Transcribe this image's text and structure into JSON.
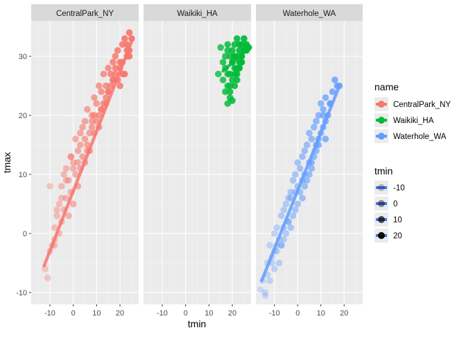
{
  "chart_data": {
    "type": "scatter",
    "facet_by": "name",
    "panels": [
      "CentralPark_NY",
      "Waikiki_HA",
      "Waterhole_WA"
    ],
    "xlabel": "tmin",
    "ylabel": "tmax",
    "xlim": [
      -18,
      28
    ],
    "ylim": [
      -12,
      36
    ],
    "x_ticks": [
      -10,
      0,
      10,
      20
    ],
    "y_ticks": [
      -10,
      0,
      10,
      20,
      30
    ],
    "grid": true,
    "point_alpha": "mapped to tmin",
    "smooth": "linear trend per panel",
    "series": [
      {
        "name": "CentralPark_NY",
        "color": "#F8766D",
        "trend": {
          "x": [
            -12.5,
            25.5
          ],
          "y": [
            -5.5,
            33
          ]
        },
        "x": [
          -12,
          -11,
          -10,
          -9,
          -8,
          -8,
          -7,
          -6,
          -6,
          -5,
          -5,
          -4,
          -4,
          -3,
          -3,
          -2,
          -2,
          -1,
          -1,
          0,
          0,
          1,
          1,
          2,
          2,
          3,
          3,
          4,
          4,
          5,
          5,
          6,
          6,
          7,
          7,
          8,
          8,
          9,
          9,
          10,
          10,
          11,
          11,
          12,
          12,
          13,
          13,
          14,
          14,
          15,
          15,
          16,
          16,
          17,
          17,
          18,
          18,
          19,
          19,
          20,
          20,
          21,
          21,
          22,
          22,
          23,
          23,
          24,
          24,
          25,
          -10,
          -7,
          -3,
          0,
          3,
          6,
          9,
          12,
          15,
          18,
          21,
          24,
          -8,
          -5,
          -1,
          2,
          5,
          8,
          11,
          14,
          17,
          20,
          23
        ],
        "y": [
          -6,
          -7.5,
          -3,
          -2,
          -1,
          1,
          3,
          0,
          5,
          2,
          8,
          4,
          10,
          6,
          11,
          3,
          9,
          7,
          13,
          5,
          12,
          10,
          16,
          8,
          14,
          11,
          17,
          13,
          18,
          12,
          19,
          15,
          21,
          14,
          17,
          18,
          20,
          17,
          23,
          19,
          22,
          20,
          25,
          21,
          24,
          22,
          27,
          23,
          25,
          24,
          28,
          25,
          27,
          26,
          29,
          27,
          30,
          26,
          31,
          28,
          29,
          29,
          32,
          27,
          33,
          30,
          31,
          31,
          34,
          33,
          8,
          4,
          9,
          11,
          15,
          14,
          20,
          21,
          24,
          28,
          27,
          30,
          -2,
          6,
          13,
          12,
          16,
          19,
          18,
          22,
          26,
          25,
          32
        ]
      },
      {
        "name": "Waikiki_HA",
        "color": "#00BA38",
        "trend": {
          "x": [
            16,
            26
          ],
          "y": [
            27.5,
            31
          ]
        },
        "x": [
          14,
          15,
          16,
          16,
          17,
          17,
          18,
          18,
          18,
          19,
          19,
          19,
          20,
          20,
          20,
          21,
          21,
          21,
          22,
          22,
          22,
          23,
          23,
          23,
          24,
          24,
          24,
          25,
          25,
          26,
          26,
          27,
          17,
          18,
          19,
          20,
          21,
          22,
          23,
          24,
          25,
          19,
          20,
          21,
          22,
          18,
          23,
          24,
          21
        ],
        "y": [
          27,
          31.5,
          29,
          26,
          28,
          30,
          22,
          25,
          32,
          24,
          27,
          30,
          26,
          29,
          31,
          25,
          28,
          32,
          27,
          30,
          33,
          28,
          29,
          31,
          29,
          32,
          30,
          31,
          33,
          31,
          32,
          31.5,
          24,
          27,
          23,
          29,
          30,
          26,
          28,
          30,
          31,
          25,
          22.5,
          27,
          28,
          31,
          32,
          29,
          30
        ]
      },
      {
        "name": "Waterhole_WA",
        "color": "#619CFF",
        "trend": {
          "x": [
            -15.5,
            18
          ],
          "y": [
            -8,
            25
          ]
        },
        "x": [
          -16,
          -15,
          -14,
          -13,
          -12,
          -12,
          -11,
          -10,
          -10,
          -9,
          -9,
          -8,
          -8,
          -7,
          -7,
          -6,
          -6,
          -5,
          -5,
          -4,
          -4,
          -3,
          -3,
          -2,
          -2,
          -1,
          -1,
          0,
          0,
          1,
          1,
          2,
          2,
          3,
          3,
          4,
          4,
          5,
          5,
          6,
          6,
          7,
          7,
          8,
          8,
          9,
          9,
          10,
          10,
          11,
          11,
          12,
          12,
          13,
          14,
          15,
          16,
          17,
          18,
          -13,
          -11,
          -9,
          -6,
          -3,
          0,
          3,
          6,
          9,
          12,
          -14,
          -10,
          -7,
          -4,
          -1,
          2,
          5,
          8,
          11,
          14
        ],
        "y": [
          -9.5,
          -8,
          -10.5,
          -5,
          -8,
          -2,
          -4,
          -6,
          0,
          -3,
          1,
          -5,
          -1,
          -2,
          3,
          -1,
          4,
          0,
          5,
          2,
          6,
          1,
          7,
          3,
          9,
          4,
          10,
          5,
          12,
          7,
          11,
          6,
          13,
          8,
          14,
          9,
          15,
          10,
          17,
          11,
          16,
          13,
          18,
          14,
          19,
          15,
          20,
          17,
          22,
          18,
          21,
          19,
          23,
          20,
          22,
          24,
          26,
          25,
          25,
          -7,
          -5,
          -2,
          1,
          6,
          8,
          10,
          12,
          16,
          16,
          -10,
          -3,
          -2,
          2,
          7,
          9,
          12,
          15,
          20,
          22
        ]
      }
    ],
    "legend": {
      "color_title": "name",
      "color_entries": [
        "CentralPark_NY",
        "Waikiki_HA",
        "Waterhole_WA"
      ],
      "alpha_title": "tmin",
      "alpha_entries": [
        "-10",
        "0",
        "10",
        "20"
      ],
      "alpha_values": [
        0.25,
        0.45,
        0.7,
        0.95
      ]
    }
  }
}
